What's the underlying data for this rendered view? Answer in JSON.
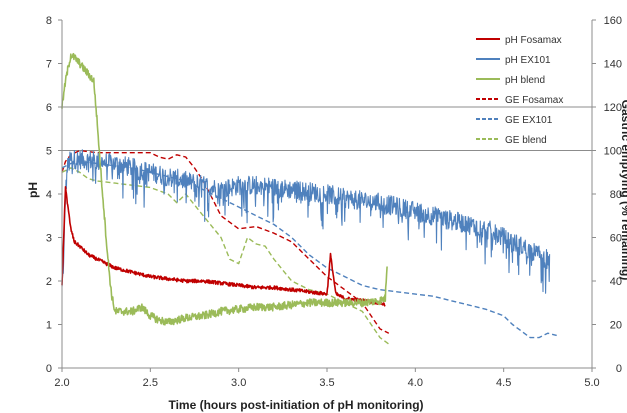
{
  "chart_data": {
    "type": "line",
    "xlabel": "Time (hours post-initiation of pH monitoring)",
    "ylabel": "pH",
    "y2label": "Gastric emptying (% remaining)",
    "xlim": [
      2.0,
      5.0
    ],
    "ylim": [
      0,
      8
    ],
    "y2lim": [
      0,
      160
    ],
    "x_ticks": [
      "2.0",
      "2.5",
      "3.0",
      "3.5",
      "4.0",
      "4.5",
      "5.0"
    ],
    "y_ticks": [
      "0",
      "1",
      "2",
      "3",
      "4",
      "5",
      "6",
      "7",
      "8"
    ],
    "y2_ticks": [
      "0",
      "20",
      "40",
      "60",
      "80",
      "100",
      "120",
      "140",
      "160"
    ],
    "hlines": [
      6,
      5
    ],
    "legend_position": "top-right",
    "series": [
      {
        "name": "pH Fosamax",
        "axis": "left",
        "style": "solid",
        "color": "#c00000",
        "noise": 0.08,
        "x": [
          2.0,
          2.01,
          2.02,
          2.03,
          2.05,
          2.07,
          2.1,
          2.15,
          2.2,
          2.25,
          2.3,
          2.4,
          2.5,
          2.6,
          2.7,
          2.8,
          2.9,
          3.0,
          3.1,
          3.2,
          3.3,
          3.4,
          3.5,
          3.52,
          3.55,
          3.6,
          3.7,
          3.8,
          3.83
        ],
        "y": [
          1.9,
          3.0,
          4.2,
          3.8,
          3.2,
          2.9,
          2.8,
          2.6,
          2.5,
          2.4,
          2.3,
          2.2,
          2.1,
          2.05,
          2.0,
          2.0,
          1.95,
          1.9,
          1.85,
          1.85,
          1.8,
          1.75,
          1.7,
          2.6,
          1.7,
          1.6,
          1.55,
          1.5,
          1.45
        ]
      },
      {
        "name": "pH EX101",
        "axis": "left",
        "style": "solid",
        "color": "#4f81bd",
        "noise": 0.45,
        "x": [
          2.0,
          2.01,
          2.02,
          2.03,
          2.05,
          2.1,
          2.2,
          2.3,
          2.4,
          2.5,
          2.6,
          2.7,
          2.8,
          2.9,
          3.0,
          3.1,
          3.2,
          3.3,
          3.4,
          3.5,
          3.6,
          3.7,
          3.8,
          3.9,
          4.0,
          4.1,
          4.2,
          4.3,
          4.4,
          4.5,
          4.6,
          4.7,
          4.75,
          4.76
        ],
        "y": [
          1.8,
          2.5,
          4.0,
          4.6,
          4.8,
          4.8,
          4.75,
          4.7,
          4.6,
          4.5,
          4.4,
          4.3,
          4.2,
          4.1,
          4.2,
          4.2,
          4.15,
          4.1,
          4.05,
          4.0,
          3.9,
          3.85,
          3.8,
          3.7,
          3.6,
          3.5,
          3.4,
          3.3,
          3.2,
          3.0,
          2.8,
          2.6,
          2.5,
          2.45
        ]
      },
      {
        "name": "pH blend",
        "axis": "left",
        "style": "solid",
        "color": "#9bbb59",
        "noise": 0.18,
        "x": [
          2.0,
          2.02,
          2.05,
          2.08,
          2.12,
          2.18,
          2.2,
          2.22,
          2.24,
          2.26,
          2.28,
          2.3,
          2.35,
          2.4,
          2.45,
          2.5,
          2.55,
          2.6,
          2.7,
          2.8,
          2.9,
          3.0,
          3.1,
          3.2,
          3.3,
          3.4,
          3.5,
          3.6,
          3.7,
          3.8,
          3.83,
          3.84
        ],
        "y": [
          6.0,
          6.6,
          7.2,
          7.1,
          6.9,
          6.6,
          5.6,
          4.5,
          3.5,
          2.5,
          1.7,
          1.3,
          1.3,
          1.3,
          1.4,
          1.2,
          1.1,
          1.05,
          1.15,
          1.2,
          1.3,
          1.35,
          1.4,
          1.4,
          1.45,
          1.5,
          1.5,
          1.5,
          1.5,
          1.55,
          1.6,
          2.4
        ]
      },
      {
        "name": "GE Fosamax",
        "axis": "right",
        "style": "dashed",
        "color": "#c00000",
        "noise": 0,
        "x": [
          2.0,
          2.02,
          2.05,
          2.1,
          2.2,
          2.3,
          2.4,
          2.5,
          2.55,
          2.6,
          2.65,
          2.7,
          2.75,
          2.8,
          2.85,
          2.9,
          3.0,
          3.1,
          3.2,
          3.3,
          3.4,
          3.5,
          3.6,
          3.7,
          3.8,
          3.85
        ],
        "y": [
          90,
          95,
          98,
          100,
          99,
          99,
          99,
          99,
          97,
          96,
          98,
          97,
          92,
          86,
          78,
          70,
          64,
          65,
          62,
          58,
          50,
          42,
          36,
          30,
          18,
          16
        ]
      },
      {
        "name": "GE EX101",
        "axis": "right",
        "style": "dashed",
        "color": "#4f81bd",
        "noise": 0,
        "x": [
          2.0,
          2.05,
          2.1,
          2.2,
          2.3,
          2.4,
          2.5,
          2.6,
          2.7,
          2.8,
          2.9,
          3.0,
          3.1,
          3.2,
          3.3,
          3.4,
          3.5,
          3.6,
          3.7,
          3.8,
          3.9,
          4.0,
          4.1,
          4.2,
          4.3,
          4.4,
          4.5,
          4.55,
          4.6,
          4.65,
          4.7,
          4.75,
          4.8
        ],
        "y": [
          92,
          94,
          95,
          94,
          93,
          92,
          90,
          88,
          86,
          82,
          78,
          74,
          70,
          66,
          60,
          52,
          46,
          42,
          38,
          36,
          35,
          34,
          33,
          31,
          29,
          27,
          24,
          20,
          17,
          14,
          14,
          16,
          15
        ]
      },
      {
        "name": "GE blend",
        "axis": "right",
        "style": "dashed",
        "color": "#9bbb59",
        "noise": 0,
        "x": [
          2.0,
          2.05,
          2.1,
          2.15,
          2.2,
          2.3,
          2.4,
          2.5,
          2.6,
          2.65,
          2.7,
          2.8,
          2.9,
          2.95,
          3.0,
          3.05,
          3.1,
          3.15,
          3.2,
          3.3,
          3.4,
          3.5,
          3.6,
          3.7,
          3.8,
          3.85
        ],
        "y": [
          90,
          92,
          90,
          87,
          86,
          85,
          84,
          83,
          80,
          76,
          80,
          70,
          60,
          50,
          48,
          60,
          57,
          56,
          50,
          40,
          36,
          34,
          30,
          26,
          14,
          11
        ]
      }
    ]
  }
}
